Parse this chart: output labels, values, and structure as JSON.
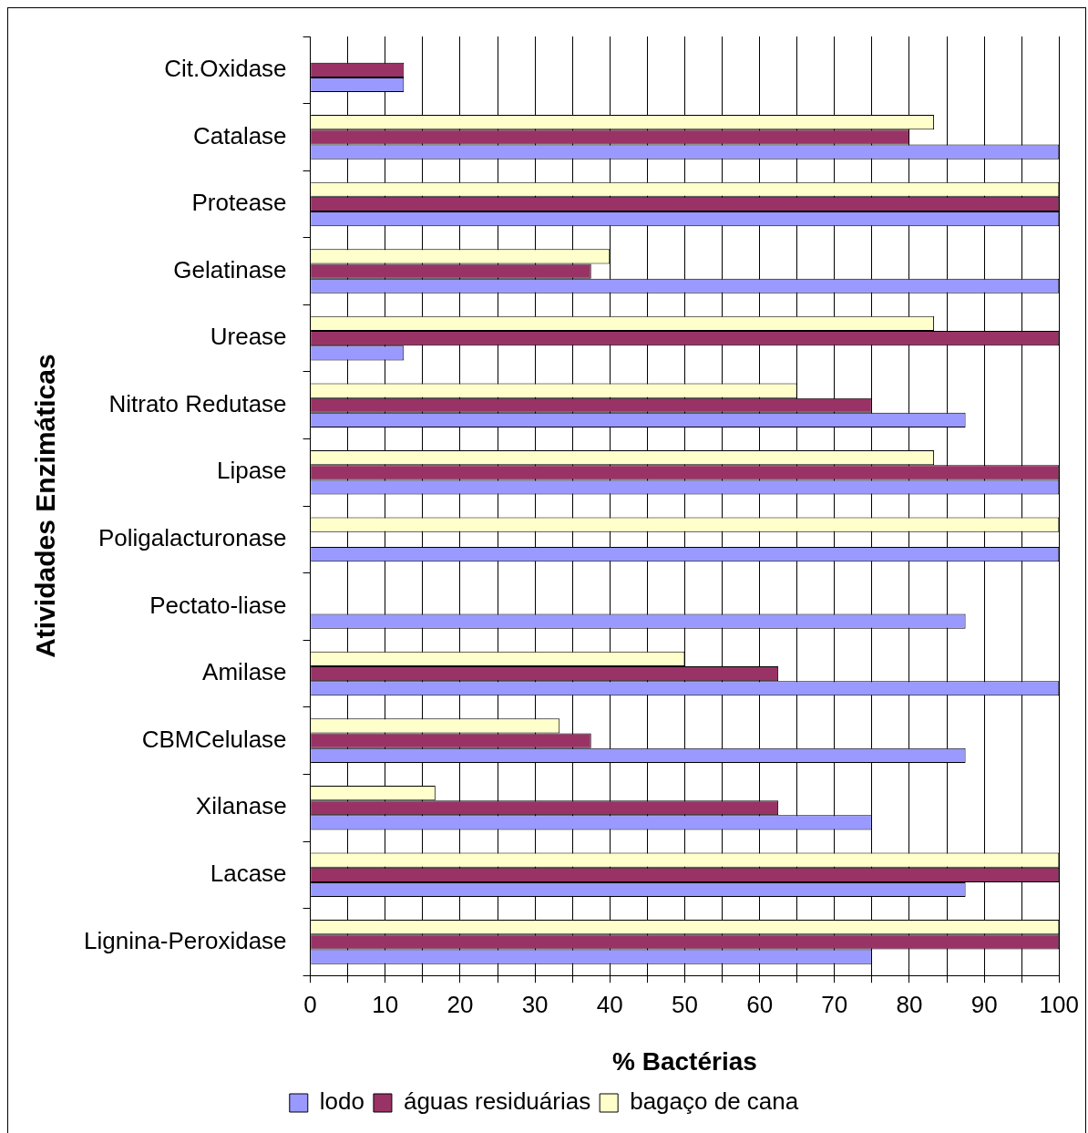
{
  "chart_data": {
    "type": "bar",
    "orientation": "horizontal",
    "xlabel": "% Bactérias",
    "ylabel": "Atividades Enzimáticas",
    "categories": [
      "Cit.Oxidase",
      "Catalase",
      "Protease",
      "Gelatinase",
      "Urease",
      "Nitrato Redutase",
      "Lipase",
      "Poligalacturonase",
      "Pectato-liase",
      "Amilase",
      "CBMCelulase",
      "Xilanase",
      "Lacase",
      "Lignina-Peroxidase"
    ],
    "series": [
      {
        "name": "lodo",
        "color": "#9999ff",
        "values": [
          12.5,
          100,
          100,
          100,
          12.5,
          87.5,
          100,
          100,
          87.5,
          100,
          87.5,
          75,
          87.5,
          75
        ]
      },
      {
        "name": "águas residuárias",
        "color": "#993366",
        "values": [
          12.5,
          80,
          100,
          37.5,
          100,
          75,
          100,
          0,
          0,
          62.5,
          37.5,
          62.5,
          100,
          100
        ]
      },
      {
        "name": "bagaço de cana",
        "color": "#ffffcc",
        "values": [
          0,
          83.3,
          100,
          40,
          83.3,
          65,
          83.3,
          100,
          0,
          50,
          33.3,
          16.7,
          100,
          100
        ]
      }
    ],
    "xlim": [
      0,
      100
    ],
    "xticks": [
      0,
      {
        "value": 5,
        "label": null
      },
      10,
      {
        "value": 15,
        "label": null
      },
      20,
      {
        "value": 25,
        "label": null
      },
      30,
      {
        "value": 35,
        "label": null
      },
      40,
      {
        "value": 45,
        "label": null
      },
      50,
      {
        "value": 55,
        "label": null
      },
      60,
      {
        "value": 65,
        "label": null
      },
      70,
      {
        "value": 75,
        "label": null
      },
      80,
      {
        "value": 85,
        "label": null
      },
      90,
      {
        "value": 95,
        "label": null
      },
      100
    ],
    "grid": "x",
    "legend": "bottom"
  }
}
